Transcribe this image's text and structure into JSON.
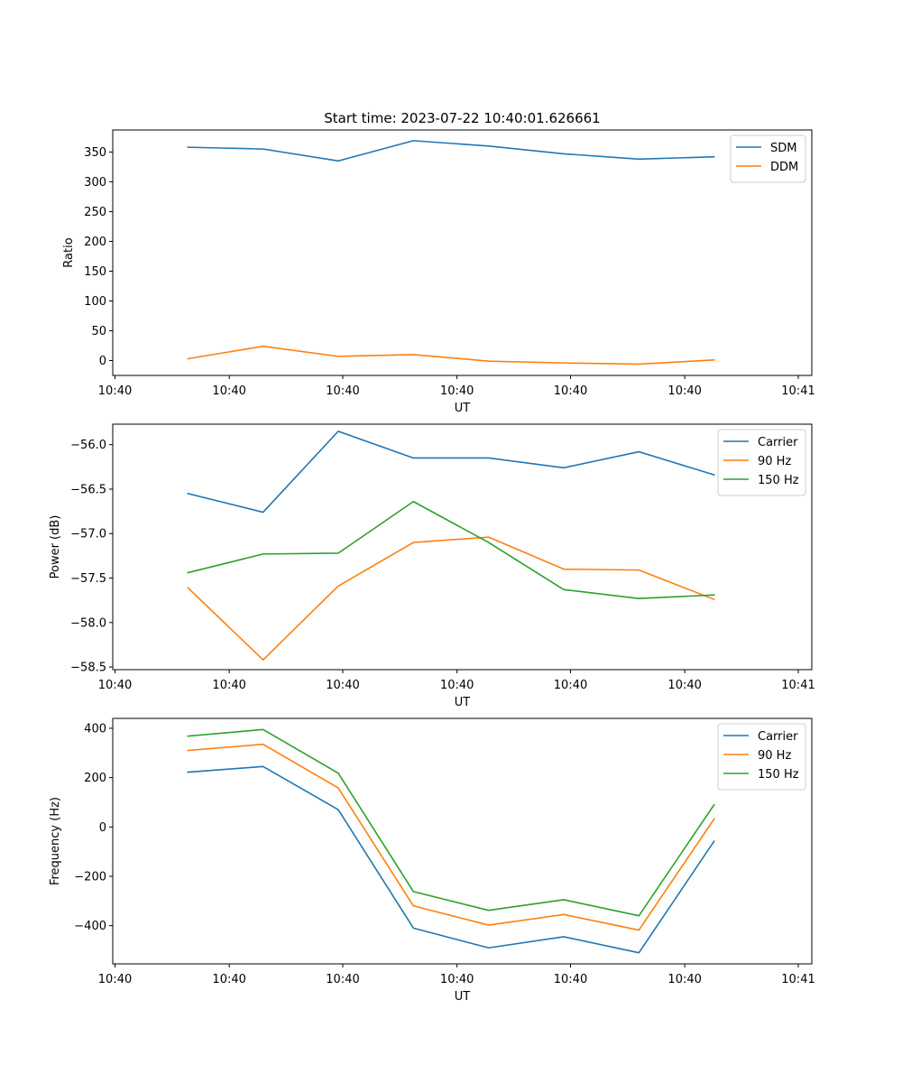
{
  "figure_title": "Start time: 2023-07-22 10:40:01.626661",
  "colors": {
    "c0": "#1f77b4",
    "c1": "#ff7f0e",
    "c2": "#2ca02c"
  },
  "chart_data": [
    {
      "type": "line",
      "title": "Start time: 2023-07-22 10:40:01.626661",
      "xlabel": "UT",
      "ylabel": "Ratio",
      "x_index": [
        1,
        2,
        3,
        4,
        5,
        6,
        7,
        8
      ],
      "xlim": [
        0,
        9.3
      ],
      "xticks": [
        0.03,
        1.55,
        3.06,
        4.58,
        6.09,
        7.61,
        9.12
      ],
      "xtick_labels": [
        "10:40",
        "10:40",
        "10:40",
        "10:40",
        "10:40",
        "10:40",
        "10:41"
      ],
      "ylim": [
        -25,
        387
      ],
      "yticks": [
        0,
        50,
        100,
        150,
        200,
        250,
        300,
        350
      ],
      "ytick_labels": [
        "0",
        "50",
        "100",
        "150",
        "200",
        "250",
        "300",
        "350"
      ],
      "legend_position": "top-right",
      "series": [
        {
          "name": "SDM",
          "color": "#1f77b4",
          "values": [
            358,
            355,
            335,
            369,
            360,
            347,
            338,
            342
          ]
        },
        {
          "name": "DDM",
          "color": "#ff7f0e",
          "values": [
            3,
            24,
            7,
            10,
            -1,
            -4,
            -6,
            1
          ]
        }
      ]
    },
    {
      "type": "line",
      "title": "",
      "xlabel": "UT",
      "ylabel": "Power (dB)",
      "x_index": [
        1,
        2,
        3,
        4,
        5,
        6,
        7,
        8
      ],
      "xlim": [
        0,
        9.3
      ],
      "xticks": [
        0.03,
        1.55,
        3.06,
        4.58,
        6.09,
        7.61,
        9.12
      ],
      "xtick_labels": [
        "10:40",
        "10:40",
        "10:40",
        "10:40",
        "10:40",
        "10:40",
        "10:41"
      ],
      "ylim": [
        -58.53,
        -55.77
      ],
      "yticks": [
        -58.5,
        -58.0,
        -57.5,
        -57.0,
        -56.5,
        -56.0
      ],
      "ytick_labels": [
        "−58.5",
        "−58.0",
        "−57.5",
        "−57.0",
        "−56.5",
        "−56.0"
      ],
      "legend_position": "top-right",
      "series": [
        {
          "name": "Carrier",
          "color": "#1f77b4",
          "values": [
            -56.55,
            -56.76,
            -55.85,
            -56.15,
            -56.15,
            -56.26,
            -56.08,
            -56.34
          ]
        },
        {
          "name": "90 Hz",
          "color": "#ff7f0e",
          "values": [
            -57.61,
            -58.42,
            -57.59,
            -57.1,
            -57.04,
            -57.4,
            -57.41,
            -57.74
          ]
        },
        {
          "name": "150 Hz",
          "color": "#2ca02c",
          "values": [
            -57.44,
            -57.23,
            -57.22,
            -56.64,
            -57.1,
            -57.63,
            -57.73,
            -57.69
          ]
        }
      ]
    },
    {
      "type": "line",
      "title": "",
      "xlabel": "UT",
      "ylabel": "Frequency (Hz)",
      "x_index": [
        1,
        2,
        3,
        4,
        5,
        6,
        7,
        8
      ],
      "xlim": [
        0,
        9.3
      ],
      "xticks": [
        0.03,
        1.55,
        3.06,
        4.58,
        6.09,
        7.61,
        9.12
      ],
      "xtick_labels": [
        "10:40",
        "10:40",
        "10:40",
        "10:40",
        "10:40",
        "10:40",
        "10:41"
      ],
      "ylim": [
        -555,
        440
      ],
      "yticks": [
        -400,
        -200,
        0,
        200,
        400
      ],
      "ytick_labels": [
        "−400",
        "−200",
        "0",
        "200",
        "400"
      ],
      "legend_position": "top-right",
      "series": [
        {
          "name": "Carrier",
          "color": "#1f77b4",
          "values": [
            222,
            245,
            70,
            -410,
            -490,
            -445,
            -510,
            -58
          ]
        },
        {
          "name": "90 Hz",
          "color": "#ff7f0e",
          "values": [
            310,
            335,
            158,
            -320,
            -398,
            -355,
            -418,
            32
          ]
        },
        {
          "name": "150 Hz",
          "color": "#2ca02c",
          "values": [
            368,
            395,
            218,
            -262,
            -338,
            -295,
            -360,
            90
          ]
        }
      ]
    }
  ]
}
